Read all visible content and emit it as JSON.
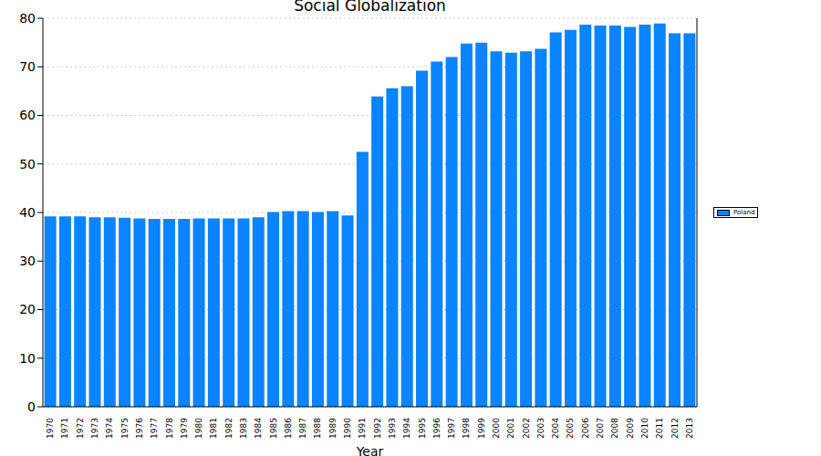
{
  "chart_data": {
    "type": "bar",
    "title": "Social Globalization",
    "x_label": "Year",
    "categories": [
      "1970",
      "1971",
      "1972",
      "1973",
      "1974",
      "1975",
      "1976",
      "1977",
      "1978",
      "1979",
      "1980",
      "1981",
      "1982",
      "1983",
      "1984",
      "1985",
      "1986",
      "1987",
      "1988",
      "1989",
      "1990",
      "1991",
      "1992",
      "1993",
      "1994",
      "1995",
      "1996",
      "1997",
      "1998",
      "1999",
      "2000",
      "2001",
      "2002",
      "2003",
      "2004",
      "2005",
      "2006",
      "2007",
      "2008",
      "2009",
      "2010",
      "2011",
      "2012",
      "2013"
    ],
    "series": [
      {
        "name": "Poland",
        "color": "#0a84ff",
        "values": [
          39.2,
          39.2,
          39.2,
          39.0,
          39.0,
          38.9,
          38.8,
          38.7,
          38.7,
          38.7,
          38.8,
          38.8,
          38.8,
          38.8,
          39.0,
          40.1,
          40.3,
          40.3,
          40.1,
          40.3,
          39.4,
          52.5,
          63.9,
          65.6,
          66.0,
          69.2,
          71.1,
          72.0,
          74.8,
          75.0,
          73.2,
          72.9,
          73.2,
          73.7,
          77.1,
          77.6,
          78.7,
          78.5,
          78.5,
          78.2,
          78.7,
          78.9,
          76.9,
          76.9
        ]
      }
    ],
    "ylim": [
      0,
      80
    ],
    "yticks": [
      0,
      10,
      20,
      30,
      40,
      50,
      60,
      70,
      80
    ],
    "grid": true,
    "legend": "right"
  }
}
